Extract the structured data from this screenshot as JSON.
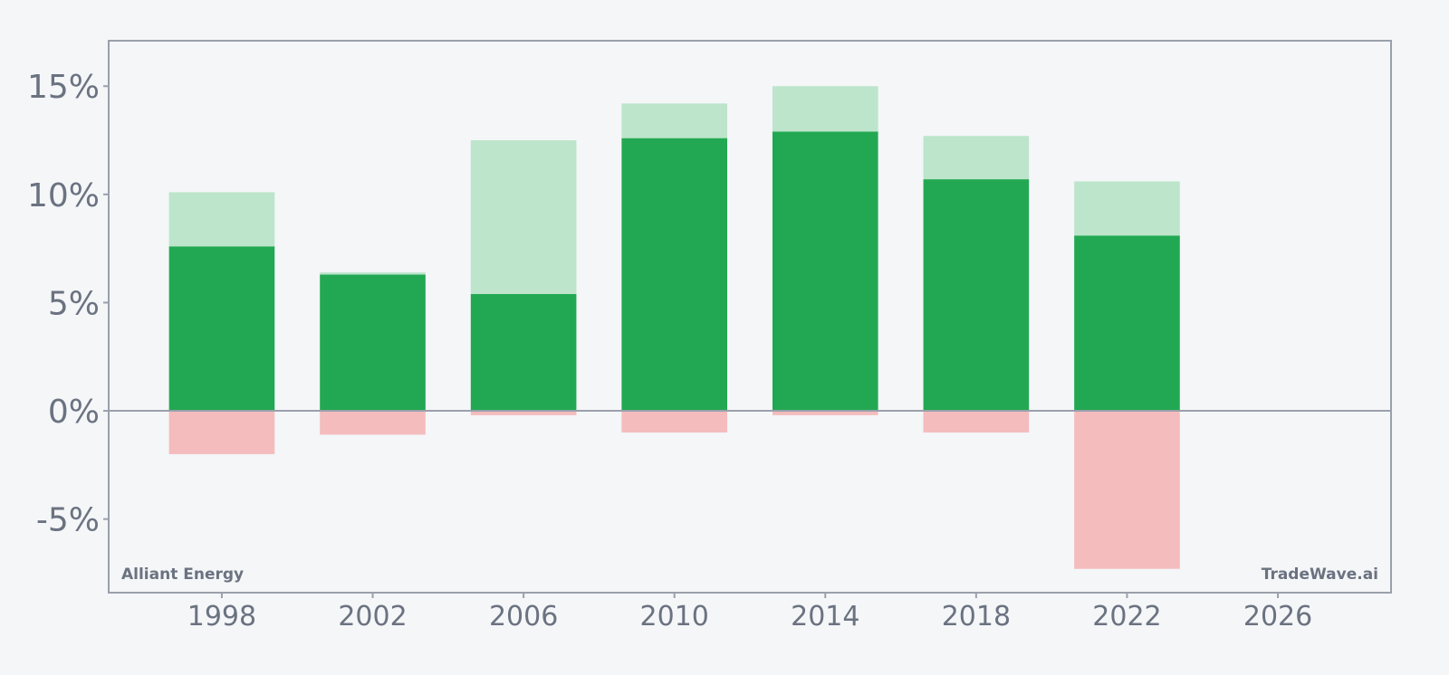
{
  "chart_data": {
    "type": "bar",
    "x": [
      1998,
      2002,
      2006,
      2010,
      2014,
      2018,
      2022
    ],
    "series": [
      {
        "values": [
          7.6,
          6.3,
          5.4,
          12.6,
          12.9,
          10.7,
          8.1
        ],
        "color": "#22a852"
      },
      {
        "values": [
          2.5,
          0.1,
          7.1,
          1.6,
          2.1,
          2.0,
          2.5
        ],
        "color": "#bce5cb"
      },
      {
        "values": [
          -2.0,
          -1.1,
          -0.2,
          -1.0,
          -0.2,
          -1.0,
          -7.3
        ],
        "color": "#f4bcbd"
      }
    ],
    "xticks": [
      "1998",
      "2002",
      "2006",
      "2010",
      "2014",
      "2018",
      "2022",
      "2026"
    ],
    "xlim": [
      1995,
      2029
    ],
    "ylim": [
      -8.4,
      17.1
    ],
    "yticks": [
      -5,
      0,
      5,
      10,
      15
    ],
    "ytick_labels": [
      "-5%",
      "0%",
      "5%",
      "10%",
      "15%"
    ],
    "bar_width_years": 2.8,
    "grid": false
  },
  "labels": {
    "left": "Alliant Energy",
    "right": "TradeWave.ai"
  },
  "colors": {
    "axis": "#9aa0ac",
    "tick_text": "#6b7280",
    "background": "#f4f6f8"
  }
}
